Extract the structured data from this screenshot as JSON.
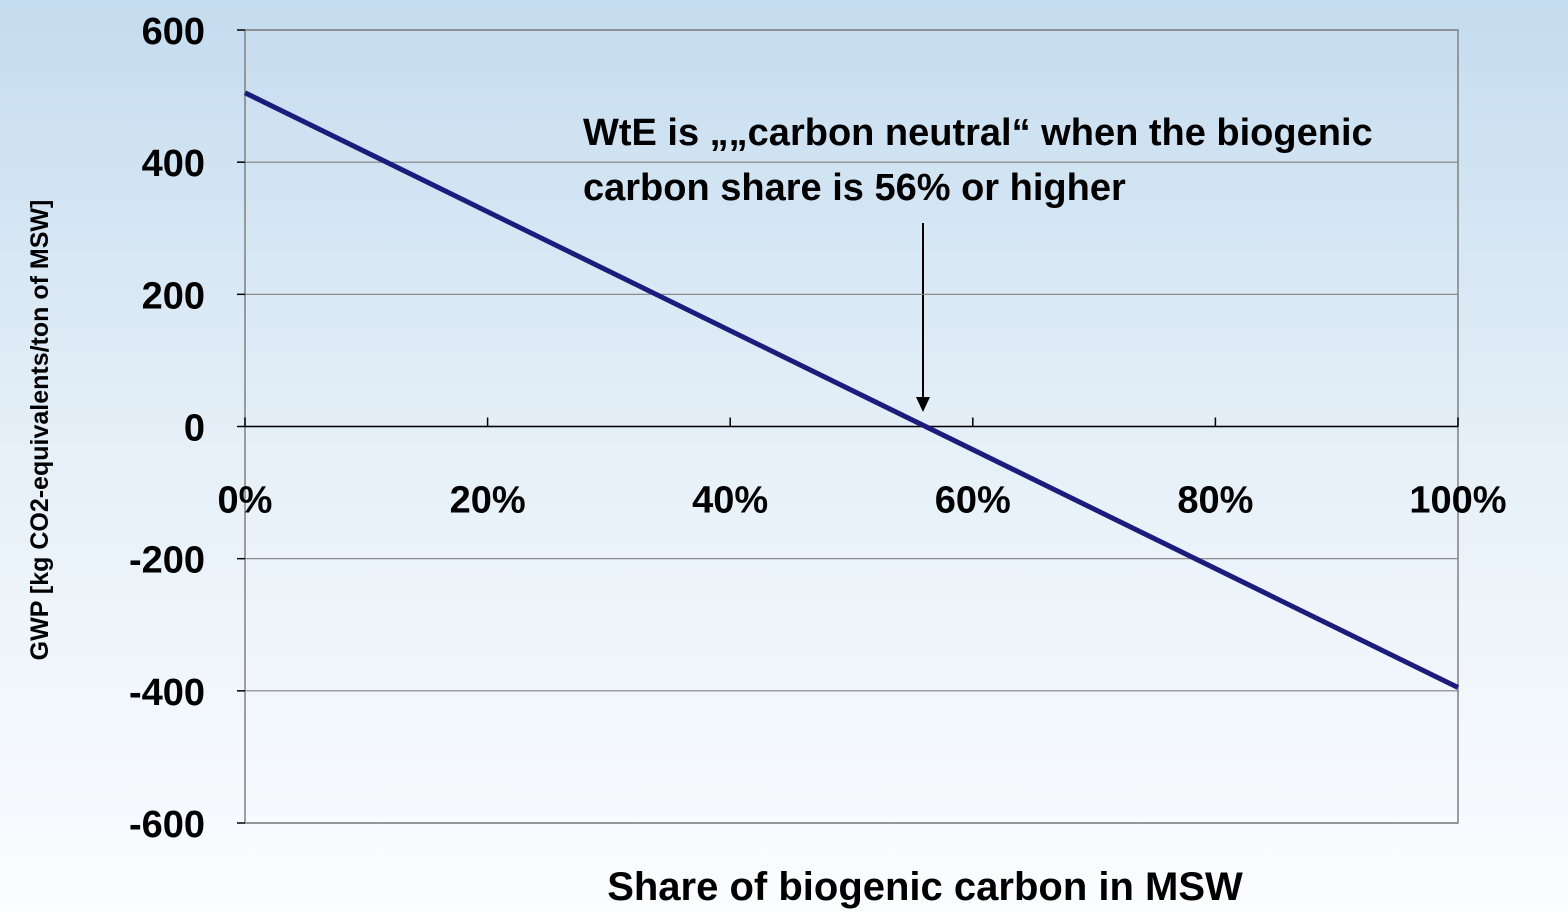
{
  "chart_data": {
    "type": "line",
    "xlabel": "Share of biogenic carbon in MSW",
    "ylabel": "GWP [kg CO2-equivalents/ton of MSW]",
    "annotation": [
      "WtE is „„carbon neutral“ when the biogenic",
      "carbon share is 56% or higher"
    ],
    "x": [
      0,
      100
    ],
    "series": [
      {
        "name": "GWP",
        "color": "#1c1c7c",
        "values": [
          505,
          -395
        ]
      }
    ],
    "xlim": [
      0,
      100
    ],
    "xticks": [
      {
        "value": 0,
        "label": "0%"
      },
      {
        "value": 20,
        "label": "20%"
      },
      {
        "value": 40,
        "label": "40%"
      },
      {
        "value": 60,
        "label": "60%"
      },
      {
        "value": 80,
        "label": "80%"
      },
      {
        "value": 100,
        "label": "100%"
      }
    ],
    "ylim": [
      -600,
      600
    ],
    "yticks": [
      -600,
      -400,
      -200,
      0,
      200,
      400,
      600
    ],
    "grid": true
  }
}
